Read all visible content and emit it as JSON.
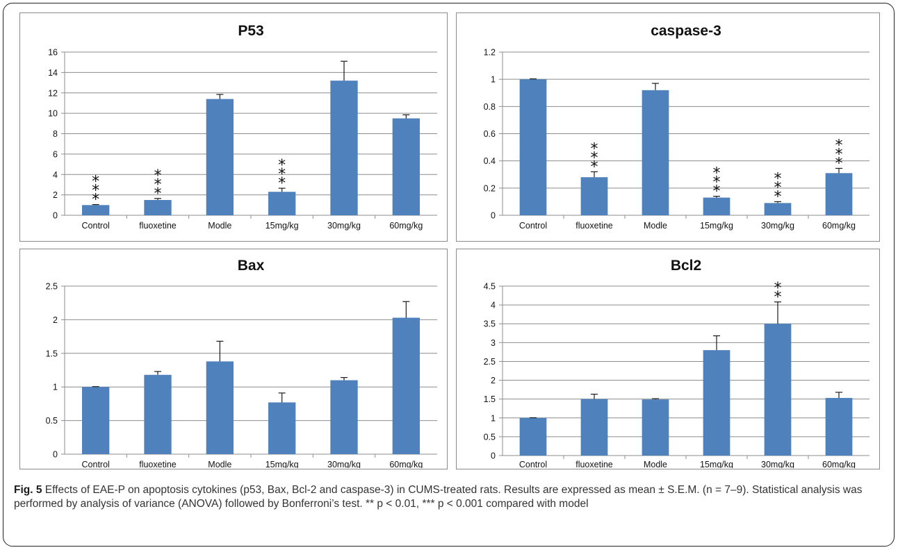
{
  "figure": {
    "label": "Fig. 5",
    "caption": "Effects of EAE-P on apoptosis cytokines (p53, Bax, Bcl-2 and caspase-3) in CUMS-treated rats. Results are expressed as mean ± S.E.M. (n = 7–9). Statistical analysis was performed by analysis of variance (ANOVA) followed by Bonferroni’s test. ** p < 0.01, *** p < 0.001 compared with model"
  },
  "colors": {
    "bar": "#4f81bd",
    "grid": "#8c8c8c",
    "error": "#1a1a1a"
  },
  "chart_data": [
    {
      "type": "bar",
      "title": "P53",
      "categories": [
        "Control",
        "fluoxetine",
        "Modle",
        "15mg/kg",
        "30mg/kg",
        "60mg/kg"
      ],
      "values": [
        1.0,
        1.5,
        11.4,
        2.3,
        13.2,
        9.5
      ],
      "errors": [
        0.05,
        0.15,
        0.45,
        0.35,
        1.9,
        0.35
      ],
      "significance": [
        "***",
        "***",
        "",
        "***",
        "",
        ""
      ],
      "ylim": [
        0,
        16
      ],
      "yticks": [
        "0",
        "2",
        "4",
        "6",
        "8",
        "10",
        "12",
        "14",
        "16"
      ],
      "grid": true
    },
    {
      "type": "bar",
      "title": "caspase-3",
      "categories": [
        "Control",
        "fluoxetine",
        "Modle",
        "15mg/kg",
        "30mg/kg",
        "60mg/kg"
      ],
      "values": [
        1.0,
        0.28,
        0.92,
        0.13,
        0.09,
        0.31
      ],
      "errors": [
        0.003,
        0.04,
        0.05,
        0.01,
        0.01,
        0.035
      ],
      "significance": [
        "",
        "***",
        "",
        "***",
        "***",
        "***"
      ],
      "ylim": [
        0,
        1.2
      ],
      "yticks": [
        "0",
        "0.2",
        "0.4",
        "0.6",
        "0.8",
        "1",
        "1.2"
      ],
      "grid": true
    },
    {
      "type": "bar",
      "title": "Bax",
      "categories": [
        "Control",
        "fluoxetine",
        "Modle",
        "15mg/kg",
        "30mg/kg",
        "60mg/kg"
      ],
      "values": [
        1.0,
        1.18,
        1.38,
        0.77,
        1.1,
        2.03
      ],
      "errors": [
        0.005,
        0.05,
        0.3,
        0.14,
        0.04,
        0.24
      ],
      "significance": [
        "",
        "",
        "",
        "",
        "",
        ""
      ],
      "ylim": [
        0,
        2.5
      ],
      "yticks": [
        "0",
        "0.5",
        "1",
        "1.5",
        "2",
        "2.5"
      ],
      "grid": true
    },
    {
      "type": "bar",
      "title": "Bcl2",
      "categories": [
        "Control",
        "fluoxetine",
        "Modle",
        "15mg/kg",
        "30mg/kg",
        "60mg/kg"
      ],
      "values": [
        1.0,
        1.5,
        1.49,
        2.8,
        3.5,
        1.53
      ],
      "errors": [
        0.005,
        0.13,
        0.02,
        0.38,
        0.58,
        0.15
      ],
      "significance": [
        "",
        "",
        "",
        "",
        "**",
        ""
      ],
      "ylim": [
        0,
        4.5
      ],
      "yticks": [
        "0",
        "0.5",
        "1",
        "1.5",
        "2",
        "2.5",
        "3",
        "3.5",
        "4",
        "4.5"
      ],
      "grid": true
    }
  ]
}
